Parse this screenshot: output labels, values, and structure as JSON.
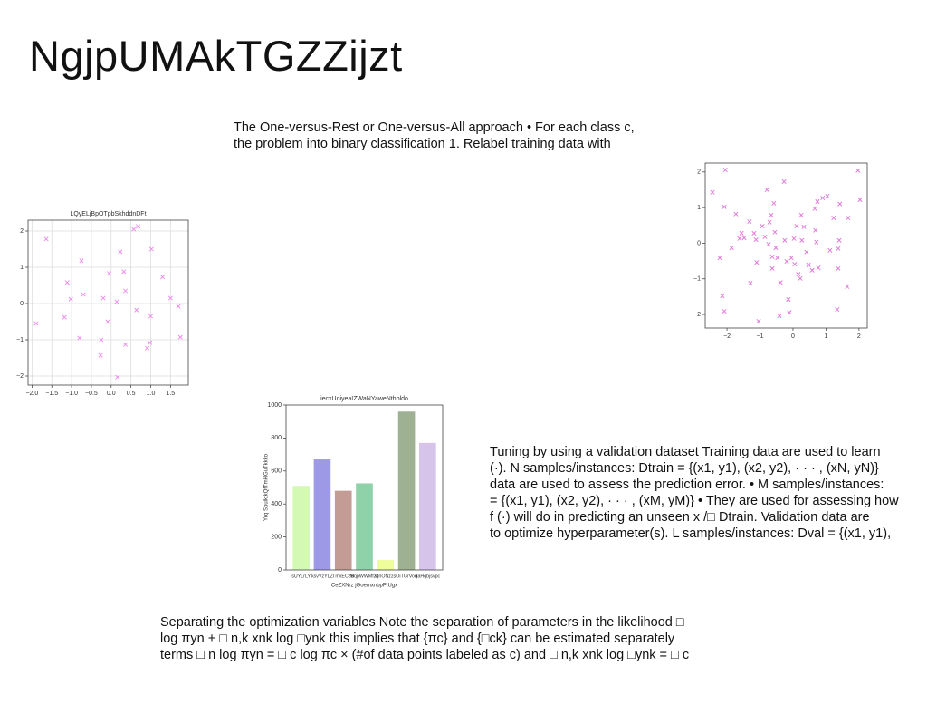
{
  "title": "NgjpUMAkTGZZijzt",
  "text_blocks": [
    [
      "The One-versus-Rest or One-versus-All approach • For each class c,",
      "the problem into binary classification 1. Relabel training data with"
    ],
    [
      "Tuning by using a validation dataset Training data are used to learn",
      "(·). N samples/instances: Dtrain = {(x1, y1), (x2, y2), · · · , (xN, yN)}",
      "data are used to assess the prediction error. • M samples/instances:",
      "= {(x1, y1), (x2, y2), · · · , (xM, yM)} • They are used for assessing how",
      "f (·) will do in predicting an unseen x /□ Dtrain. Validation data are",
      "to optimize hyperparameter(s). L samples/instances: Dval = {(x1, y1),"
    ],
    [
      "Separating the optimization variables Note the separation of parameters in the likelihood □",
      "log πyn + □ n,k xnk log □ynk this implies that {πc} and {□ck} can be estimated separately",
      "terms □ n log πyn = □ c log πc × (#of data points labeled as c) and □ n,k xnk log □ynk = □ c"
    ]
  ],
  "chart_data": [
    {
      "type": "scatter",
      "title": "LQyELjBpOTpbSkhddnDFt",
      "color": "#ee88ee",
      "marker": "x",
      "grid": true,
      "x": [
        -1.9,
        -1.64,
        -1.11,
        -1.02,
        -1.18,
        -0.75,
        -0.7,
        -0.8,
        -0.27,
        -0.25,
        -0.2,
        -0.09,
        -0.05,
        0.14,
        0.16,
        0.23,
        0.32,
        0.36,
        0.36,
        0.57,
        0.68,
        0.64,
        0.91,
        1.02,
        1.0,
        0.98,
        1.3,
        1.5,
        1.7,
        1.75
      ],
      "y": [
        -0.55,
        1.78,
        0.58,
        0.12,
        -0.38,
        1.18,
        0.25,
        -0.95,
        -1.43,
        -1.0,
        0.15,
        -0.5,
        0.83,
        0.05,
        -2.03,
        1.43,
        0.88,
        0.35,
        -1.13,
        2.05,
        2.13,
        -0.18,
        -1.23,
        1.5,
        -0.35,
        -1.08,
        0.73,
        0.15,
        -0.08,
        -0.93
      ],
      "xlim": [
        -2.1,
        1.95
      ],
      "ylim": [
        -2.25,
        2.3
      ],
      "xticks": [
        {
          "value": -2,
          "label": "−2.0"
        },
        {
          "value": -1.5,
          "label": "−1.5"
        },
        {
          "value": -1,
          "label": "−1.0"
        },
        {
          "value": -0.5,
          "label": "−0.5"
        },
        {
          "value": 0,
          "label": "0.0"
        },
        0.5,
        {
          "value": 1,
          "label": "1.0"
        },
        1.5
      ],
      "yticks": [
        {
          "value": -2,
          "label": "−2"
        },
        {
          "value": -1,
          "label": "−1"
        },
        0,
        1,
        2
      ]
    },
    {
      "type": "scatter",
      "color": "#e070d8",
      "marker": "x",
      "grid": false,
      "x": [
        -2.44,
        -2.05,
        -2.22,
        -2.14,
        -2.08,
        -2.08,
        -1.86,
        -1.73,
        -1.62,
        -1.56,
        -1.48,
        -1.32,
        -1.29,
        -1.18,
        -1.12,
        -1.1,
        -1.04,
        -0.93,
        -0.85,
        -0.79,
        -0.74,
        -0.71,
        -0.66,
        -0.63,
        -0.63,
        -0.58,
        -0.55,
        -0.52,
        -0.47,
        -0.41,
        -0.38,
        -0.27,
        -0.25,
        -0.19,
        -0.14,
        -0.11,
        -0.05,
        0.03,
        0.05,
        0.11,
        0.16,
        0.22,
        0.25,
        0.27,
        0.33,
        0.41,
        0.47,
        0.58,
        0.66,
        0.68,
        0.71,
        0.77,
        0.74,
        0.9,
        1.04,
        1.12,
        1.23,
        1.34,
        1.37,
        1.4,
        1.37,
        1.42,
        1.64,
        1.67,
        1.97,
        2.03
      ],
      "y": [
        1.43,
        2.06,
        -0.41,
        -1.48,
        -1.91,
        1.02,
        -0.13,
        0.82,
        0.13,
        0.28,
        0.15,
        0.61,
        -1.12,
        0.28,
        0.1,
        -0.54,
        -2.19,
        0.48,
        0.18,
        1.5,
        -0.03,
        0.59,
        0.79,
        -0.38,
        -0.71,
        1.12,
        0.31,
        -0.13,
        -0.41,
        -2.04,
        -1.1,
        1.73,
        0.08,
        -0.51,
        -1.58,
        -1.94,
        -0.41,
        0.13,
        -0.59,
        0.48,
        -0.87,
        -0.99,
        0.79,
        0.08,
        0.46,
        -0.25,
        -0.61,
        -0.76,
        0.97,
        0.36,
        0.03,
        -0.69,
        1.17,
        1.27,
        1.32,
        -0.2,
        0.71,
        -1.86,
        -0.15,
        0.08,
        -0.71,
        1.1,
        -1.22,
        0.71,
        2.04,
        1.22
      ],
      "xlim": [
        -2.66,
        2.25
      ],
      "ylim": [
        -2.38,
        2.25
      ],
      "xticks": [
        {
          "value": -2,
          "label": "−2"
        },
        {
          "value": -1,
          "label": "−1"
        },
        0,
        1,
        2
      ],
      "yticks": [
        {
          "value": -2,
          "label": "−2"
        },
        {
          "value": -1,
          "label": "−1"
        },
        0,
        1,
        2
      ]
    },
    {
      "type": "bar",
      "title": "iecxUoiyeaIZWaNYaweNthbldo",
      "x_label": "CeZXNrz jGoemxnbpP Ugx",
      "y_label": "Yrq SpuiktkQfTmHGuTkkko",
      "categories": [
        "sUYLrLY",
        "ksvVzYLZ",
        "TmxECeB",
        "MqpWWMfzq",
        "OnONzzs",
        "OiTGrVoq",
        "daHqbjsvpc"
      ],
      "values": [
        510,
        670,
        480,
        525,
        60,
        960,
        770
      ],
      "colors": [
        "#d4f9b4",
        "#9d99e6",
        "#c49c96",
        "#8fd2aa",
        "#eefc9c",
        "#9fb193",
        "#d7c4ea"
      ],
      "ylim": [
        0,
        1000
      ],
      "yticks": [
        0,
        200,
        400,
        600,
        800,
        1000
      ]
    }
  ]
}
